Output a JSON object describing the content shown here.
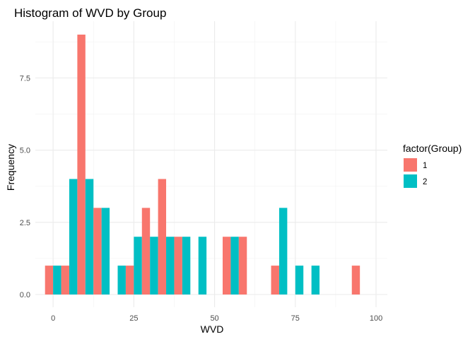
{
  "chart_data": {
    "type": "bar",
    "title": "Histogram of WVD by Group",
    "xlabel": "WVD",
    "ylabel": "Frequency",
    "xlim": [
      -5.5,
      103.5
    ],
    "ylim": [
      0,
      9
    ],
    "x_ticks": [
      0,
      25,
      50,
      75,
      100
    ],
    "y_ticks": [
      0.0,
      2.5,
      5.0,
      7.5
    ],
    "x_tick_labels": [
      "0",
      "25",
      "50",
      "75",
      "100"
    ],
    "y_tick_labels": [
      "0.0",
      "2.5",
      "5.0",
      "7.5"
    ],
    "bin_width": 5,
    "bin_centers": [
      0,
      5,
      10,
      15,
      20,
      25,
      30,
      35,
      40,
      45,
      50,
      55,
      60,
      65,
      70,
      75,
      80,
      85,
      90,
      95,
      100
    ],
    "grid": true,
    "legend": {
      "title": "factor(Group)",
      "placement": "right"
    },
    "series": [
      {
        "name": "1",
        "color": "#F8766D",
        "values": [
          1,
          1,
          9,
          3,
          0,
          1,
          3,
          4,
          2,
          0,
          0,
          2,
          2,
          0,
          1,
          0,
          0,
          0,
          0,
          1,
          0
        ]
      },
      {
        "name": "2",
        "color": "#00BFC4",
        "values": [
          1,
          4,
          4,
          3,
          1,
          2,
          2,
          2,
          2,
          2,
          0,
          2,
          0,
          0,
          3,
          1,
          1,
          0,
          0,
          0,
          0
        ]
      }
    ]
  }
}
